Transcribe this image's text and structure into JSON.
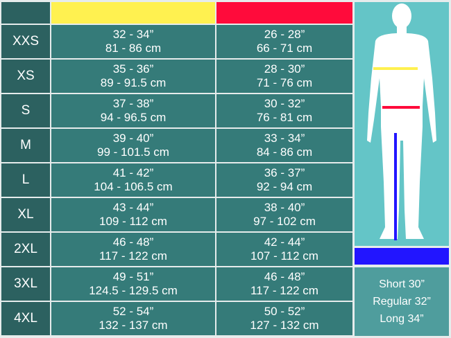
{
  "colors": {
    "chest": "#fff150",
    "waist": "#ff0b3b",
    "inseam": "#2215ff",
    "size_column": "#2c6160",
    "cell": "#357b79",
    "figure_bg": "#64c5c7"
  },
  "rows": [
    {
      "size": "XXS",
      "chest_in": "32 - 34”",
      "chest_cm": "81 - 86 cm",
      "waist_in": "26 - 28”",
      "waist_cm": "66 - 71 cm"
    },
    {
      "size": "XS",
      "chest_in": "35 - 36”",
      "chest_cm": "89 - 91.5 cm",
      "waist_in": "28 - 30”",
      "waist_cm": "71 - 76 cm"
    },
    {
      "size": "S",
      "chest_in": "37 - 38”",
      "chest_cm": "94 - 96.5 cm",
      "waist_in": "30 - 32”",
      "waist_cm": "76 - 81 cm"
    },
    {
      "size": "M",
      "chest_in": "39 - 40”",
      "chest_cm": "99 - 101.5 cm",
      "waist_in": "33 - 34”",
      "waist_cm": "84 - 86 cm"
    },
    {
      "size": "L",
      "chest_in": "41 - 42”",
      "chest_cm": "104 - 106.5 cm",
      "waist_in": "36 - 37”",
      "waist_cm": "92 - 94 cm"
    },
    {
      "size": "XL",
      "chest_in": "43 - 44”",
      "chest_cm": "109 - 112 cm",
      "waist_in": "38 - 40”",
      "waist_cm": "97 - 102 cm"
    },
    {
      "size": "2XL",
      "chest_in": "46 - 48”",
      "chest_cm": "117 - 122 cm",
      "waist_in": "42 - 44”",
      "waist_cm": "107 - 112 cm"
    },
    {
      "size": "3XL",
      "chest_in": "49 - 51”",
      "chest_cm": "124.5 - 129.5 cm",
      "waist_in": "46 - 48”",
      "waist_cm": "117 - 122 cm"
    },
    {
      "size": "4XL",
      "chest_in": "52 - 54”",
      "chest_cm": "132 - 137 cm",
      "waist_in": "50 - 52”",
      "waist_cm": "127 - 132 cm"
    }
  ],
  "inseam": [
    "Short 30”",
    "Regular 32”",
    "Long 34”"
  ]
}
